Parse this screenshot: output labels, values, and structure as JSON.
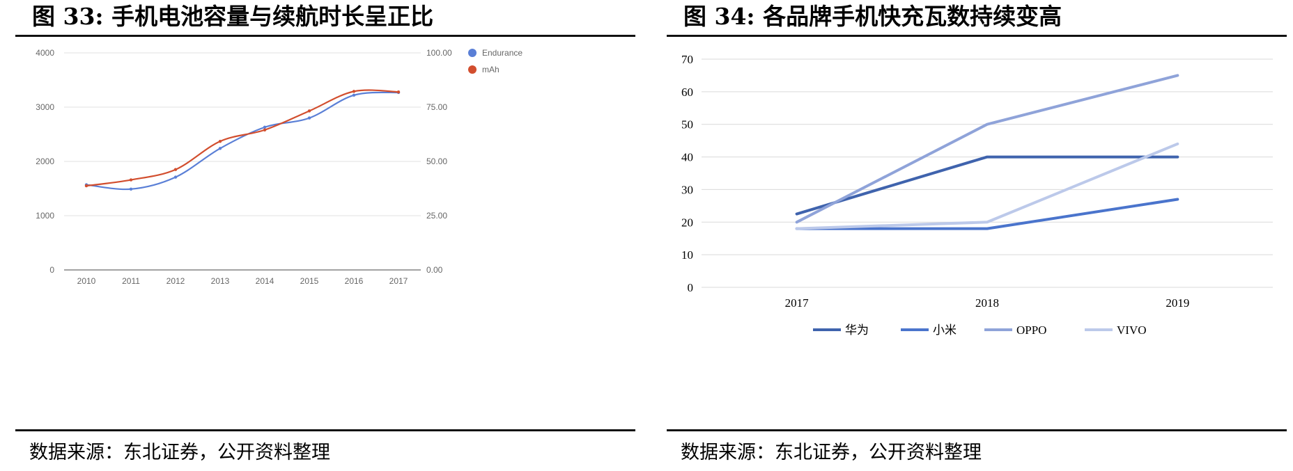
{
  "left": {
    "title": "图  33:  手机电池容量与续航时长呈正比",
    "source": "数据来源：东北证券，公开资料整理"
  },
  "right": {
    "title": "图  34:  各品牌手机快充瓦数持续变高",
    "source": "数据来源：东北证券，公开资料整理"
  },
  "chart_data": [
    {
      "type": "line",
      "title": "",
      "categories": [
        "2010",
        "2011",
        "2012",
        "2013",
        "2014",
        "2015",
        "2016",
        "2017"
      ],
      "y_left": {
        "ticks": [
          "0",
          "1000",
          "2000",
          "3000",
          "4000"
        ],
        "range": [
          0,
          4000
        ]
      },
      "y_right": {
        "ticks": [
          "0.00",
          "25.00",
          "50.00",
          "75.00",
          "100.00"
        ],
        "range": [
          0,
          100
        ]
      },
      "legend_position": "top-right",
      "grid": true,
      "series": [
        {
          "name": "Endurance",
          "axis": "left",
          "color": "#5a7fd6",
          "values": [
            1570,
            1490,
            1710,
            2240,
            2630,
            2800,
            3220,
            3270
          ]
        },
        {
          "name": "mAh",
          "axis": "right",
          "color": "#d24e2e",
          "values": [
            38.75,
            41.5,
            46.25,
            59.25,
            64.5,
            73.25,
            82.25,
            82.0
          ]
        }
      ]
    },
    {
      "type": "line",
      "title": "",
      "categories": [
        "2017",
        "2018",
        "2019"
      ],
      "y": {
        "ticks": [
          "0",
          "10",
          "20",
          "30",
          "40",
          "50",
          "60",
          "70"
        ],
        "range": [
          0,
          70
        ]
      },
      "legend_position": "bottom",
      "grid": true,
      "series": [
        {
          "name": "华为",
          "color": "#3f63ad",
          "values": [
            22.5,
            40,
            40
          ]
        },
        {
          "name": "小米",
          "color": "#4a74cc",
          "values": [
            18,
            18,
            27
          ]
        },
        {
          "name": "OPPO",
          "color": "#8fa3d9",
          "values": [
            20,
            50,
            65
          ]
        },
        {
          "name": "VIVO",
          "color": "#bcc9ea",
          "values": [
            18,
            20,
            44
          ]
        }
      ]
    }
  ]
}
